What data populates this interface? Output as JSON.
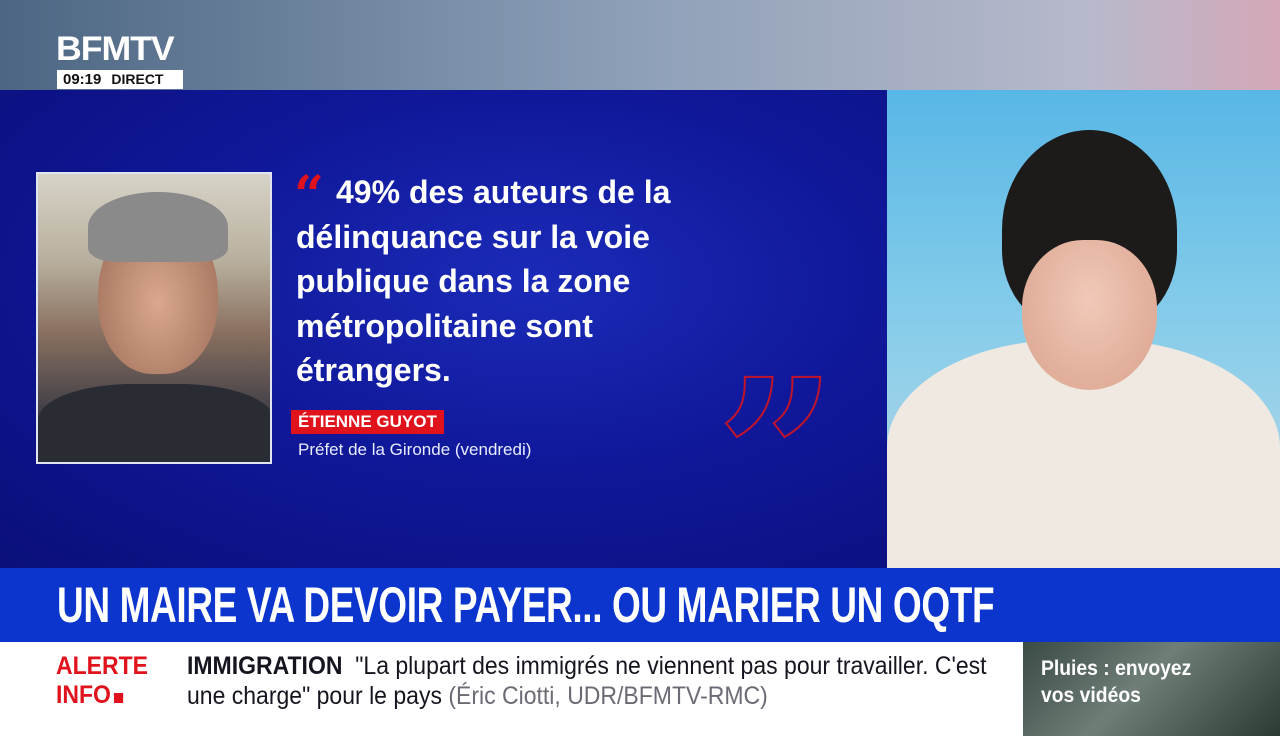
{
  "header": {
    "channel": "BFMTV",
    "time": "09:19",
    "status": "DIRECT"
  },
  "quote_card": {
    "quote": "49% des auteurs de la délinquance sur la voie publique dans la zone métropolitaine sont étrangers.",
    "open_mark": "“",
    "close_mark": "”",
    "speaker": "ÉTIENNE GUYOT",
    "role": "Préfet de la Gironde (vendredi)"
  },
  "headline": "UN MAIRE VA DEVOIR PAYER... OU MARIER UN OQTF",
  "ticker": {
    "alert_line1": "ALERTE",
    "alert_line2": "INFO",
    "topic": "IMMIGRATION",
    "text": "\"La plupart des immigrés ne viennent pas pour travailler. C'est une charge\" pour le pays",
    "source": "(Éric Ciotti, UDR/BFMTV-RMC)"
  },
  "promo": {
    "line1": "Pluies : envoyez",
    "line2": "vos vidéos"
  },
  "colors": {
    "accent_red": "#e0131d",
    "headline_blue": "#0b35cd",
    "panel_blue": "#10189a"
  }
}
